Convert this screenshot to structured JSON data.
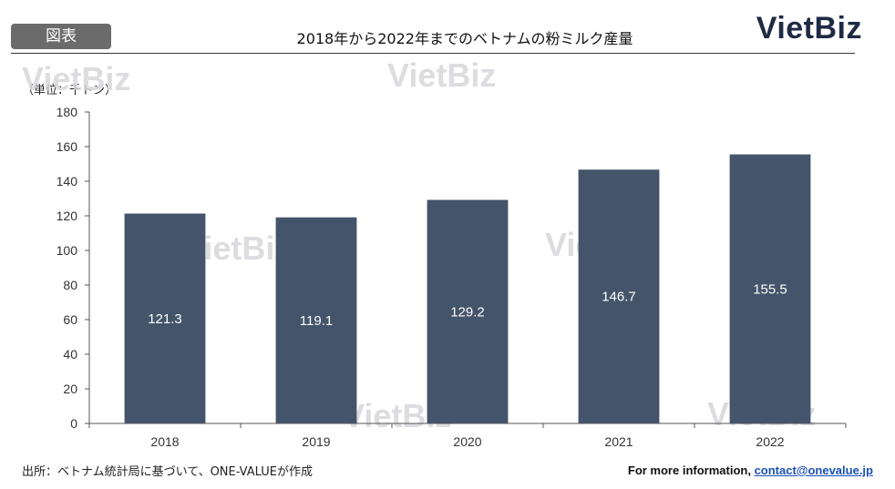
{
  "header": {
    "figure_label": "図表",
    "title": "2018年から2022年までのベトナムの粉ミルク産量",
    "logo": "VietBiz"
  },
  "unit_label": "（単位：千トン）",
  "watermark": "VietBiz",
  "footer": {
    "source": "出所：ベトナム統計局に基づいて、ONE-VALUEが作成",
    "contact_prefix": "For more information,",
    "contact_email": "contact@onevalue.jp"
  },
  "colors": {
    "bar": "#44546a",
    "axis": "#555555",
    "watermark": "#d7d7dc"
  },
  "chart_data": {
    "type": "bar",
    "title": "2018年から2022年までのベトナムの粉ミルク産量",
    "xlabel": "",
    "ylabel": "（単位：千トン）",
    "categories": [
      "2018",
      "2019",
      "2020",
      "2021",
      "2022"
    ],
    "values": [
      121.3,
      119.1,
      129.2,
      146.7,
      155.5
    ],
    "data_labels": [
      "121.3",
      "119.1",
      "129.2",
      "146.7",
      "155.5"
    ],
    "ylim": [
      0,
      180
    ],
    "yticks": [
      0,
      20,
      40,
      60,
      80,
      100,
      120,
      140,
      160,
      180
    ],
    "grid": false,
    "legend": "none"
  }
}
